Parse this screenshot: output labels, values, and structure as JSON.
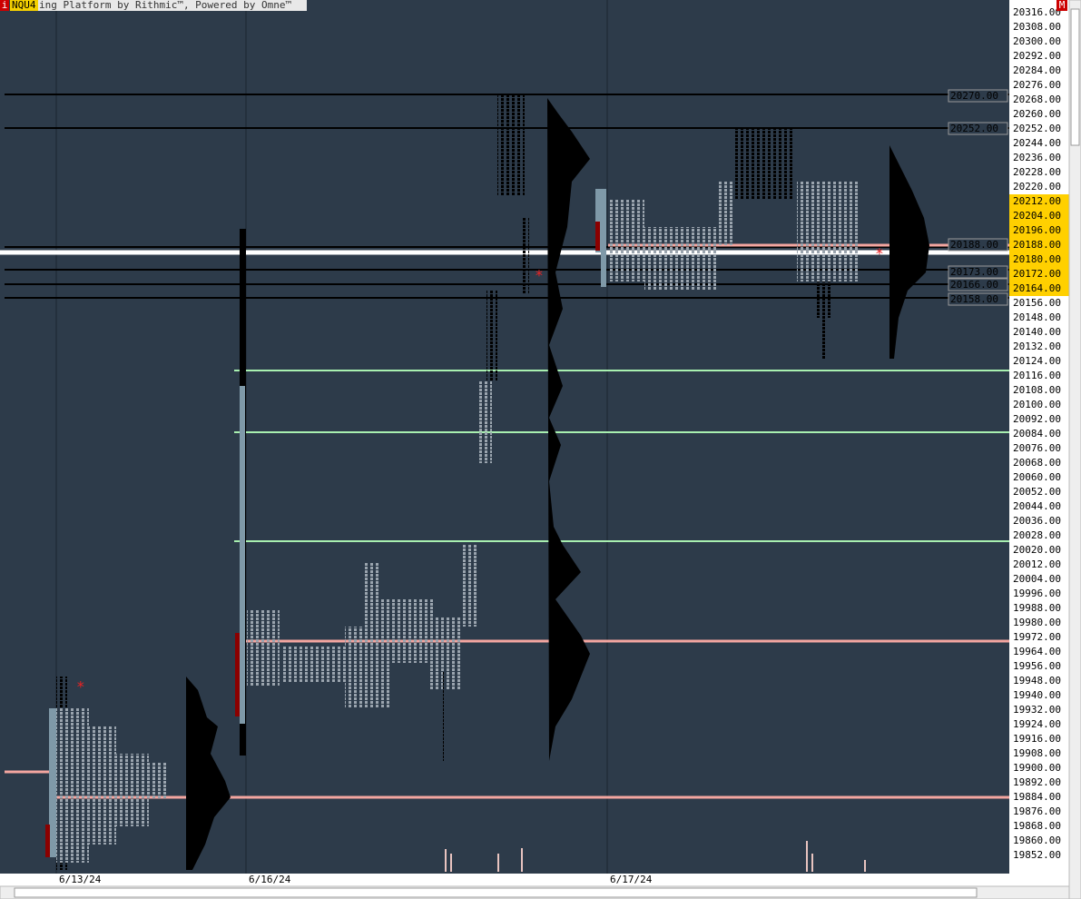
{
  "title_bar": {
    "left_badge": "i",
    "symbol": "NQU4",
    "text": "ing Platform by Rithmic™, Powered by Omne™",
    "right_badge": "M"
  },
  "price_axis": [
    {
      "label": "20316.00",
      "highlighted": false
    },
    {
      "label": "20308.00",
      "highlighted": false
    },
    {
      "label": "20300.00",
      "highlighted": false
    },
    {
      "label": "20292.00",
      "highlighted": false
    },
    {
      "label": "20284.00",
      "highlighted": false
    },
    {
      "label": "20276.00",
      "highlighted": false
    },
    {
      "label": "20268.00",
      "highlighted": false
    },
    {
      "label": "20260.00",
      "highlighted": false
    },
    {
      "label": "20252.00",
      "highlighted": false
    },
    {
      "label": "20244.00",
      "highlighted": false
    },
    {
      "label": "20236.00",
      "highlighted": false
    },
    {
      "label": "20228.00",
      "highlighted": false
    },
    {
      "label": "20220.00",
      "highlighted": false
    },
    {
      "label": "20212.00",
      "highlighted": true
    },
    {
      "label": "20204.00",
      "highlighted": true
    },
    {
      "label": "20196.00",
      "highlighted": true
    },
    {
      "label": "20188.00",
      "highlighted": true
    },
    {
      "label": "20180.00",
      "highlighted": true
    },
    {
      "label": "20172.00",
      "highlighted": true
    },
    {
      "label": "20164.00",
      "highlighted": true
    },
    {
      "label": "20156.00",
      "highlighted": false
    },
    {
      "label": "20148.00",
      "highlighted": false
    },
    {
      "label": "20140.00",
      "highlighted": false
    },
    {
      "label": "20132.00",
      "highlighted": false
    },
    {
      "label": "20124.00",
      "highlighted": false
    },
    {
      "label": "20116.00",
      "highlighted": false
    },
    {
      "label": "20108.00",
      "highlighted": false
    },
    {
      "label": "20100.00",
      "highlighted": false
    },
    {
      "label": "20092.00",
      "highlighted": false
    },
    {
      "label": "20084.00",
      "highlighted": false
    },
    {
      "label": "20076.00",
      "highlighted": false
    },
    {
      "label": "20068.00",
      "highlighted": false
    },
    {
      "label": "20060.00",
      "highlighted": false
    },
    {
      "label": "20052.00",
      "highlighted": false
    },
    {
      "label": "20044.00",
      "highlighted": false
    },
    {
      "label": "20036.00",
      "highlighted": false
    },
    {
      "label": "20028.00",
      "highlighted": false
    },
    {
      "label": "20020.00",
      "highlighted": false
    },
    {
      "label": "20012.00",
      "highlighted": false
    },
    {
      "label": "20004.00",
      "highlighted": false
    },
    {
      "label": "19996.00",
      "highlighted": false
    },
    {
      "label": "19988.00",
      "highlighted": false
    },
    {
      "label": "19980.00",
      "highlighted": false
    },
    {
      "label": "19972.00",
      "highlighted": false
    },
    {
      "label": "19964.00",
      "highlighted": false
    },
    {
      "label": "19956.00",
      "highlighted": false
    },
    {
      "label": "19948.00",
      "highlighted": false
    },
    {
      "label": "19940.00",
      "highlighted": false
    },
    {
      "label": "19932.00",
      "highlighted": false
    },
    {
      "label": "19924.00",
      "highlighted": false
    },
    {
      "label": "19916.00",
      "highlighted": false
    },
    {
      "label": "19908.00",
      "highlighted": false
    },
    {
      "label": "19900.00",
      "highlighted": false
    },
    {
      "label": "19892.00",
      "highlighted": false
    },
    {
      "label": "19884.00",
      "highlighted": false
    },
    {
      "label": "19876.00",
      "highlighted": false
    },
    {
      "label": "19868.00",
      "highlighted": false
    },
    {
      "label": "19860.00",
      "highlighted": false
    },
    {
      "label": "19852.00",
      "highlighted": false
    }
  ],
  "level_labels": [
    "20270.00",
    "20252.00",
    "20188.00",
    "20173.00",
    "20166.00",
    "20158.00"
  ],
  "dates": [
    "6/13/24",
    "6/16/24",
    "6/17/24"
  ]
}
